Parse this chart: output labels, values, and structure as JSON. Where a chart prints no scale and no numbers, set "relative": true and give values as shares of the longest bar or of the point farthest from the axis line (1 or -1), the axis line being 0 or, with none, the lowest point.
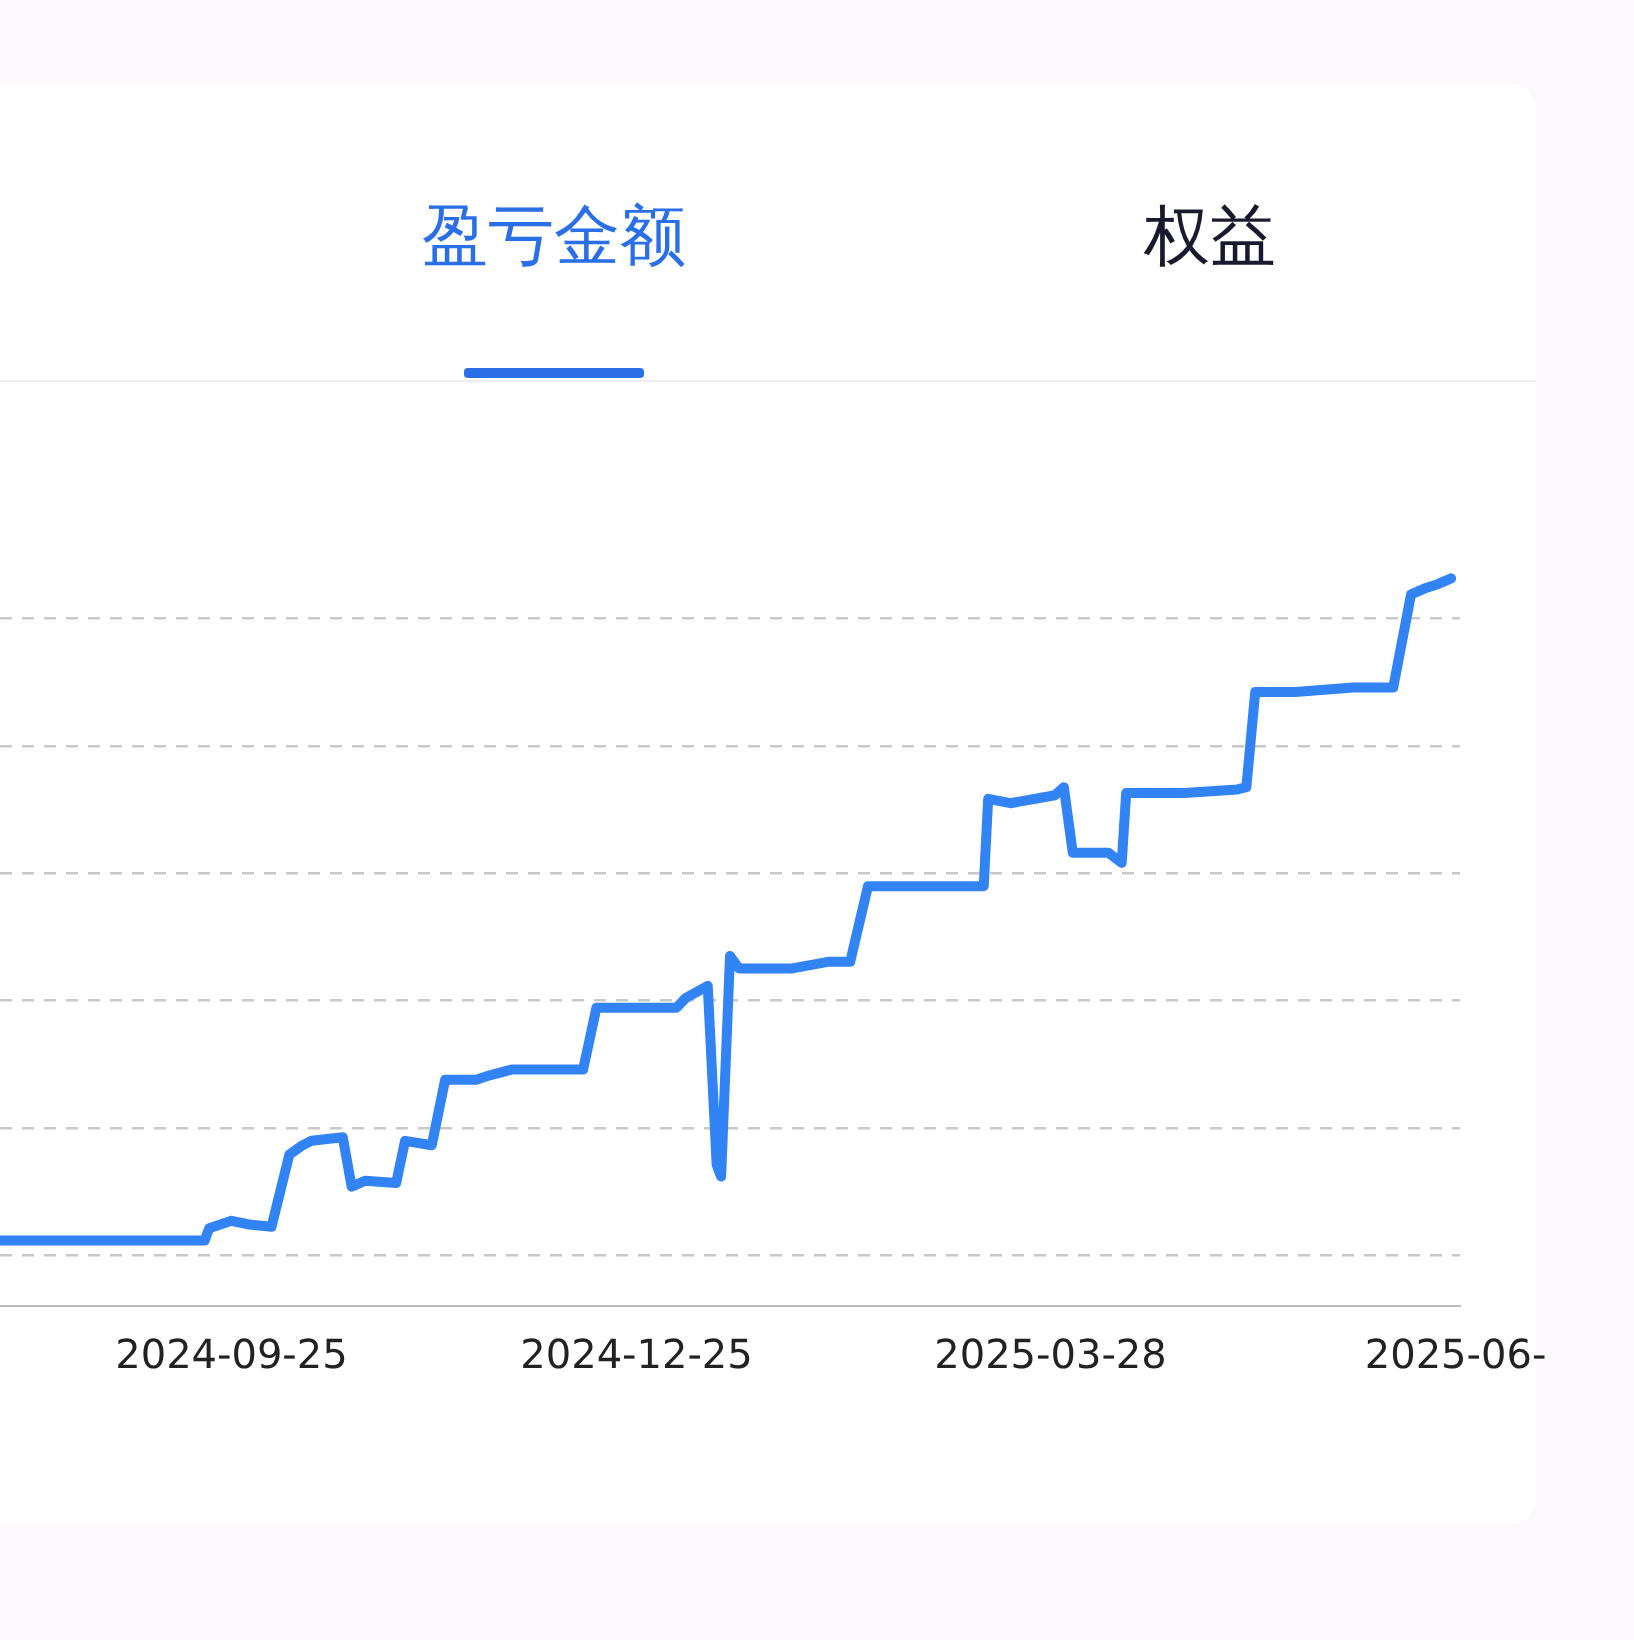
{
  "chart_data": {
    "type": "line",
    "title": "盈亏金额",
    "annotations": [
      "权益"
    ],
    "relative": true,
    "grid": "y",
    "legend": false,
    "x": [
      "2024-08-04",
      "2024-09-19",
      "2024-09-20",
      "2024-09-25",
      "2024-09-29",
      "2024-10-04",
      "2024-10-08",
      "2024-10-11",
      "2024-10-13",
      "2024-10-20",
      "2024-10-22",
      "2024-10-25",
      "2024-11-01",
      "2024-11-03",
      "2024-11-09",
      "2024-11-12",
      "2024-11-19",
      "2024-11-22",
      "2024-11-27",
      "2024-12-13",
      "2024-12-16",
      "2024-12-21",
      "2025-01-03",
      "2025-01-05",
      "2025-01-10",
      "2025-01-12",
      "2025-01-13",
      "2025-01-15",
      "2025-01-17",
      "2025-01-29",
      "2025-02-06",
      "2025-02-11",
      "2025-02-15",
      "2025-02-25",
      "2025-03-13",
      "2025-03-14",
      "2025-03-19",
      "2025-03-29",
      "2025-03-31",
      "2025-04-02",
      "2025-04-06",
      "2025-04-10",
      "2025-04-13",
      "2025-04-14",
      "2025-04-27",
      "2025-05-09",
      "2025-05-11",
      "2025-05-13",
      "2025-05-22",
      "2025-06-04",
      "2025-06-13",
      "2025-06-17",
      "2025-06-20",
      "2025-06-23",
      "2025-06-26"
    ],
    "series": [
      {
        "color": "#3283f3",
        "values": [
          0.09,
          0.09,
          0.107,
          0.117,
          0.112,
          0.109,
          0.208,
          0.221,
          0.227,
          0.232,
          0.164,
          0.172,
          0.169,
          0.227,
          0.221,
          0.311,
          0.311,
          0.317,
          0.325,
          0.325,
          0.41,
          0.41,
          0.41,
          0.423,
          0.44,
          0.194,
          0.178,
          0.481,
          0.464,
          0.464,
          0.473,
          0.473,
          0.577,
          0.577,
          0.577,
          0.697,
          0.691,
          0.702,
          0.713,
          0.623,
          0.623,
          0.623,
          0.609,
          0.705,
          0.705,
          0.71,
          0.713,
          0.844,
          0.844,
          0.85,
          0.85,
          0.978,
          0.986,
          0.992,
          1
        ]
      }
    ],
    "xlim": [
      "2024-08-04",
      "2025-06-28"
    ],
    "xticks": [
      "2024-09-25",
      "2024-12-25",
      "2025-03-28",
      {
        "value": "2025-06-27",
        "label": "2025-06-"
      }
    ]
  }
}
